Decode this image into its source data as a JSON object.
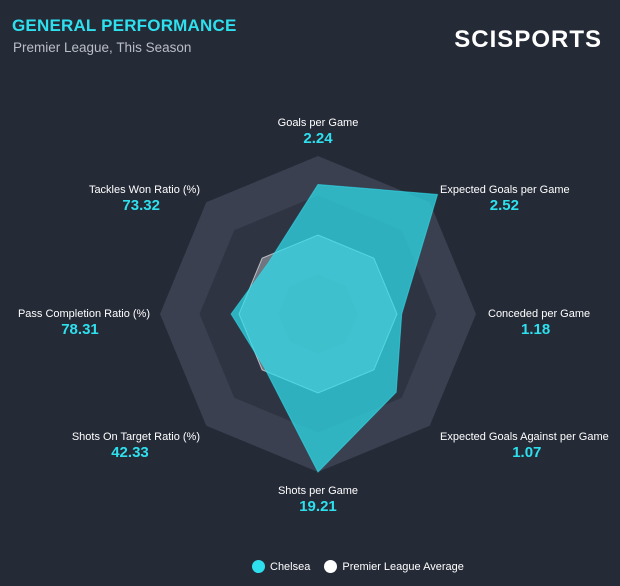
{
  "header": {
    "title": "GENERAL PERFORMANCE",
    "subtitle": "Premier League, This Season",
    "logo": "SCISPORTS"
  },
  "colors": {
    "team": "#2ee0ee",
    "average": "#ffffff",
    "ring_light": "#3a4050",
    "ring_dark": "#2f3443",
    "label": "#ffffff",
    "value": "#2ee0ee"
  },
  "chart_data": {
    "type": "radar",
    "axes": [
      {
        "label": "Goals per Game",
        "value": "2.24"
      },
      {
        "label": "Expected Goals per Game",
        "value": "2.52"
      },
      {
        "label": "Conceded per Game",
        "value": "1.18"
      },
      {
        "label": "Expected Goals Against per Game",
        "value": "1.07"
      },
      {
        "label": "Shots per Game",
        "value": "19.21"
      },
      {
        "label": "Shots On Target Ratio (%)",
        "value": "42.33"
      },
      {
        "label": "Pass Completion Ratio (%)",
        "value": "78.31"
      },
      {
        "label": "Tackles Won Ratio (%)",
        "value": "73.32"
      }
    ],
    "series": [
      {
        "name": "Chelsea",
        "values": [
          0.82,
          1.07,
          0.53,
          0.7,
          1.0,
          0.48,
          0.55,
          0.45
        ]
      },
      {
        "name": "Premier League Average",
        "values": [
          0.5,
          0.5,
          0.5,
          0.5,
          0.5,
          0.5,
          0.5,
          0.5
        ]
      }
    ],
    "rings": 4
  },
  "legend": {
    "items": [
      {
        "label": "Chelsea",
        "color": "#2ee0ee"
      },
      {
        "label": "Premier League Average",
        "color": "#ffffff"
      }
    ]
  }
}
